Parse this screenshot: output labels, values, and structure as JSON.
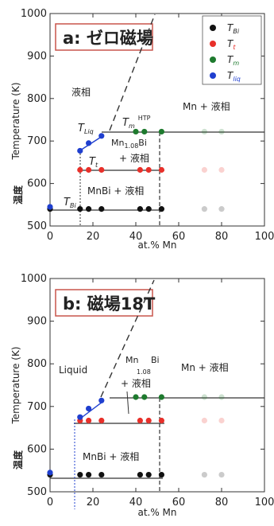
{
  "chart_data": [
    {
      "type": "scatter",
      "title": "a: ゼロ磁場",
      "xlabel": "at.% Mn",
      "ylabel": "Temperature (K)",
      "ylabel_ja": "温度",
      "xlim": [
        0,
        100
      ],
      "ylim": [
        500,
        1000
      ],
      "xticks": [
        "0",
        "20",
        "40",
        "60",
        "80",
        "100"
      ],
      "yticks": [
        "500",
        "600",
        "700",
        "800",
        "900",
        "1000"
      ],
      "grid": false,
      "legend_position": "top-right",
      "series": [
        {
          "name": "T_Bi",
          "color": "#111111",
          "points": [
            [
              0,
              540
            ],
            [
              14,
              540
            ],
            [
              18,
              540
            ],
            [
              24,
              540
            ],
            [
              42,
              540
            ],
            [
              46,
              540
            ],
            [
              52,
              540
            ],
            [
              72,
              540
            ],
            [
              80,
              540
            ]
          ]
        },
        {
          "name": "T_t",
          "color": "#e8302a",
          "points": [
            [
              14,
              632
            ],
            [
              18,
              632
            ],
            [
              24,
              632
            ],
            [
              42,
              632
            ],
            [
              46,
              632
            ],
            [
              52,
              632
            ],
            [
              72,
              632
            ],
            [
              80,
              632
            ]
          ]
        },
        {
          "name": "T_m",
          "color": "#1e7a2e",
          "points": [
            [
              40,
              722
            ],
            [
              44,
              722
            ],
            [
              52,
              722
            ],
            [
              72,
              722
            ],
            [
              80,
              722
            ]
          ]
        },
        {
          "name": "T_liq",
          "color": "#1f3fcf",
          "points": [
            [
              0,
              545
            ],
            [
              14,
              677
            ],
            [
              18,
              695
            ],
            [
              24,
              712
            ]
          ]
        }
      ],
      "labels": {
        "liquid": "液相",
        "tliq": "T",
        "tliq_sub": "Liq",
        "tm": "T",
        "tm_sub": "m",
        "tm_sup": "HTP",
        "mn_plus_liquid": "Mn + 液相",
        "mn108bi_a": "Mn",
        "mn108bi_sub": "1.08",
        "mn108bi_b": "Bi",
        "tt": "T",
        "tt_sub": "t",
        "tt_plus_liquid": "+ 液相",
        "mnbi_plus_liquid": "MnBi + 液相",
        "tbi": "T",
        "tbi_sub": "Bi"
      },
      "legend": [
        {
          "sym": "T",
          "sub": "Bi"
        },
        {
          "sym": "T",
          "sub": "t"
        },
        {
          "sym": "T",
          "sub": "m"
        },
        {
          "sym": "T",
          "sub": "liq"
        }
      ]
    },
    {
      "type": "scatter",
      "title": "b: 磁場18T",
      "xlabel": "at.% Mn",
      "ylabel": "Temperature (K)",
      "ylabel_ja": "温度",
      "xlim": [
        0,
        100
      ],
      "ylim": [
        500,
        1000
      ],
      "xticks": [
        "0",
        "20",
        "40",
        "60",
        "80",
        "100"
      ],
      "yticks": [
        "500",
        "600",
        "700",
        "800",
        "900",
        "1000"
      ],
      "grid": false,
      "series": [
        {
          "name": "T_Bi",
          "color": "#111111",
          "points": [
            [
              0,
              540
            ],
            [
              14,
              540
            ],
            [
              18,
              540
            ],
            [
              24,
              540
            ],
            [
              42,
              540
            ],
            [
              46,
              540
            ],
            [
              52,
              540
            ],
            [
              72,
              540
            ],
            [
              80,
              540
            ]
          ]
        },
        {
          "name": "T_t",
          "color": "#e8302a",
          "points": [
            [
              14,
              667
            ],
            [
              18,
              667
            ],
            [
              24,
              667
            ],
            [
              42,
              667
            ],
            [
              46,
              667
            ],
            [
              52,
              667
            ],
            [
              72,
              667
            ],
            [
              80,
              667
            ]
          ]
        },
        {
          "name": "T_m",
          "color": "#1e7a2e",
          "points": [
            [
              40,
              722
            ],
            [
              44,
              722
            ],
            [
              52,
              722
            ],
            [
              72,
              722
            ],
            [
              80,
              722
            ]
          ]
        },
        {
          "name": "T_liq",
          "color": "#1f3fcf",
          "points": [
            [
              0,
              545
            ],
            [
              14,
              675
            ],
            [
              18,
              695
            ],
            [
              24,
              714
            ]
          ]
        }
      ],
      "labels": {
        "liquid": "Liquid",
        "mn_plus_liquid": "Mn + 液相",
        "mn108bi_a": "Mn",
        "mn108bi_sub": "1.08",
        "mn108bi_b": "Bi",
        "plus_liquid": "+ 液相",
        "mnbi_plus_liquid": "MnBi + 液相"
      }
    }
  ]
}
